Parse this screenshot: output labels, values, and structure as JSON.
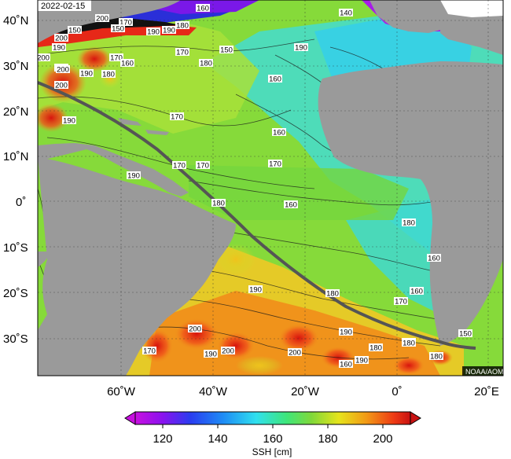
{
  "map": {
    "date": "2022-02-15",
    "credit": "NOAA/AOML",
    "lat_labels": [
      "40˚N",
      "30˚N",
      "20˚N",
      "10˚N",
      "0˚",
      "10˚S",
      "20˚S",
      "30˚S"
    ],
    "lon_labels": [
      "60˚W",
      "40˚W",
      "20˚W",
      "0˚",
      "20˚E"
    ],
    "contour_labels": [
      "150",
      "200",
      "170",
      "200",
      "190",
      "160",
      "140",
      "190",
      "180",
      "150",
      "190",
      "200",
      "190",
      "170",
      "170",
      "150",
      "190",
      "200",
      "190",
      "180",
      "160",
      "160",
      "180",
      "170",
      "190",
      "170",
      "160",
      "170",
      "180",
      "170",
      "160",
      "180",
      "160",
      "190",
      "180",
      "160",
      "170",
      "180",
      "170",
      "160",
      "200",
      "200",
      "190",
      "190",
      "200",
      "180",
      "150",
      "190",
      "180",
      "180",
      "190",
      "200"
    ],
    "colors": {
      "land": "#9a9a9a",
      "ocean_high": "#e8201a",
      "ocean_mid": "#7fd23c",
      "ocean_low": "#3fd6e6",
      "track": "#555555"
    }
  },
  "colorbar": {
    "tick_labels": [
      "120",
      "140",
      "160",
      "180",
      "200"
    ],
    "title": "SSH [cm]",
    "range": [
      110,
      210
    ]
  }
}
